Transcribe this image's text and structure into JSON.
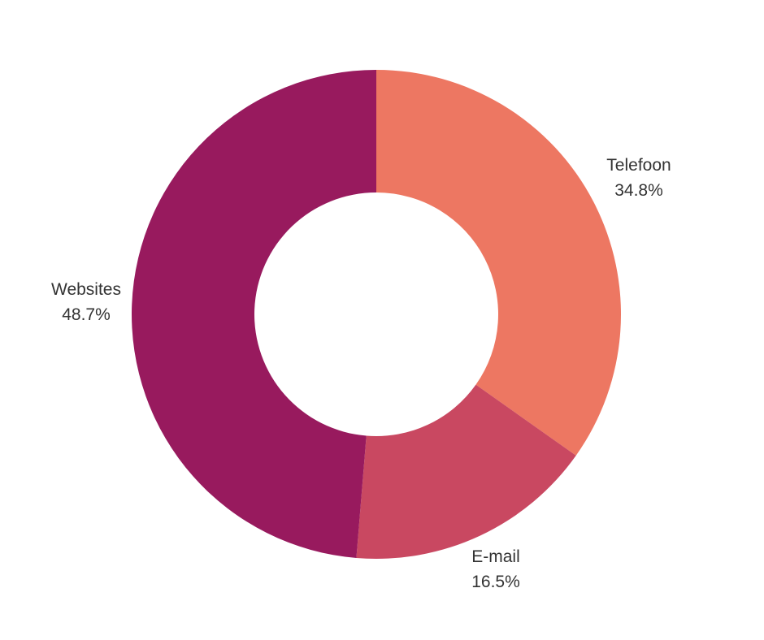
{
  "chart_data": {
    "type": "pie",
    "donut": true,
    "categories": [
      "Telefoon",
      "E-mail",
      "Websites"
    ],
    "values": [
      34.8,
      16.5,
      48.7
    ],
    "value_labels": [
      "34.8%",
      "16.5%",
      "48.7%"
    ],
    "colors": [
      "#ED7762",
      "#C94861",
      "#981A5E"
    ],
    "start_angle": "top (12 o'clock)",
    "direction": "clockwise",
    "legend": "none",
    "title": ""
  }
}
